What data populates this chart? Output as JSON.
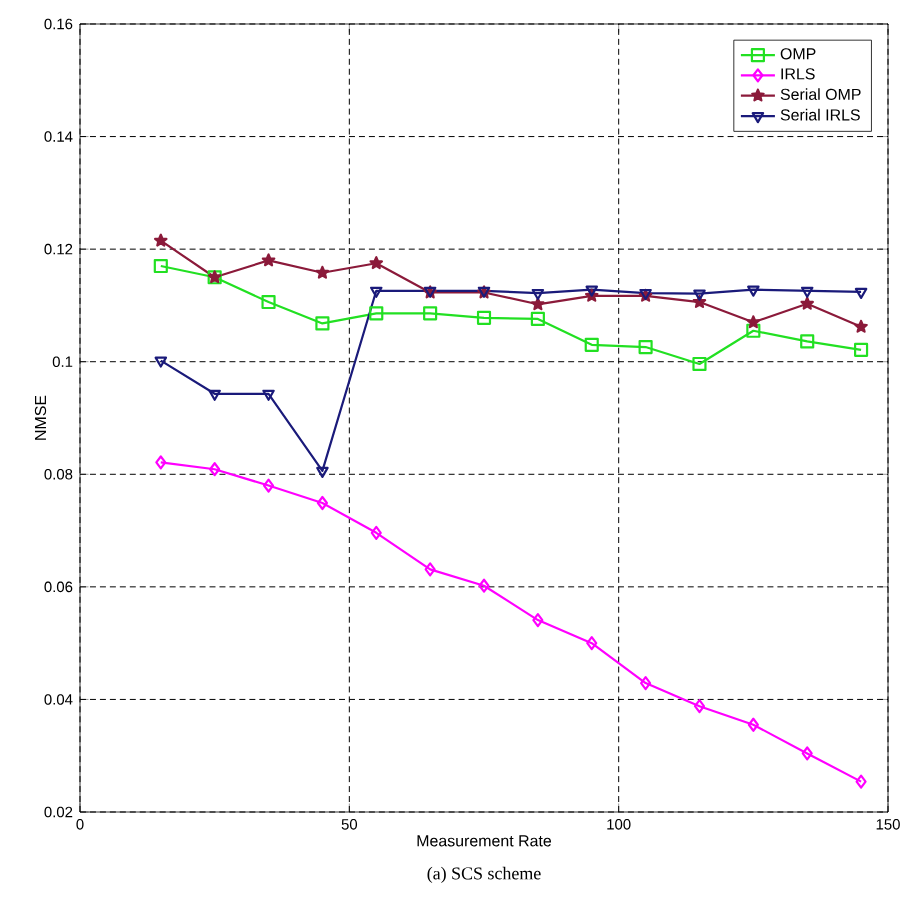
{
  "chart_data": {
    "type": "line",
    "xlabel": "Measurement Rate",
    "ylabel": "NMSE",
    "x": [
      15,
      25,
      35,
      45,
      55,
      65,
      75,
      85,
      95,
      105,
      115,
      125,
      135,
      145
    ],
    "series": [
      {
        "name": "OMP",
        "color": "#22e022",
        "marker": "square",
        "values": [
          0.117,
          0.115,
          0.1106,
          0.1068,
          0.1086,
          0.1086,
          0.1078,
          0.1076,
          0.103,
          0.1026,
          0.0996,
          0.1055,
          0.1036,
          0.1021
        ]
      },
      {
        "name": "IRLS",
        "color": "#ff00ff",
        "marker": "diamond",
        "values": [
          0.0821,
          0.0809,
          0.078,
          0.0749,
          0.0696,
          0.0631,
          0.0602,
          0.0541,
          0.05,
          0.0429,
          0.0388,
          0.0355,
          0.0304,
          0.0254
        ]
      },
      {
        "name": "Serial OMP",
        "color": "#8b1a3a",
        "marker": "star",
        "values": [
          0.1215,
          0.115,
          0.118,
          0.1158,
          0.1175,
          0.1123,
          0.1123,
          0.1102,
          0.1117,
          0.1117,
          0.1106,
          0.107,
          0.1103,
          0.1062
        ]
      },
      {
        "name": "Serial IRLS",
        "color": "#1a1a7a",
        "marker": "triangle",
        "values": [
          0.1002,
          0.0943,
          0.0943,
          0.0806,
          0.1126,
          0.1126,
          0.1126,
          0.1122,
          0.1128,
          0.1122,
          0.1121,
          0.1128,
          0.1126,
          0.1124
        ]
      }
    ],
    "xlim": [
      0,
      150
    ],
    "xticks": [
      0,
      50,
      100,
      150
    ],
    "ylim": [
      0.02,
      0.16
    ],
    "yticks": [
      0.02,
      0.04,
      0.06,
      0.08,
      0.1,
      0.12,
      0.14,
      0.16
    ],
    "grid": true,
    "legend": "top right",
    "line_style": "solid",
    "annotations": [
      "(a)  SCS scheme"
    ]
  }
}
